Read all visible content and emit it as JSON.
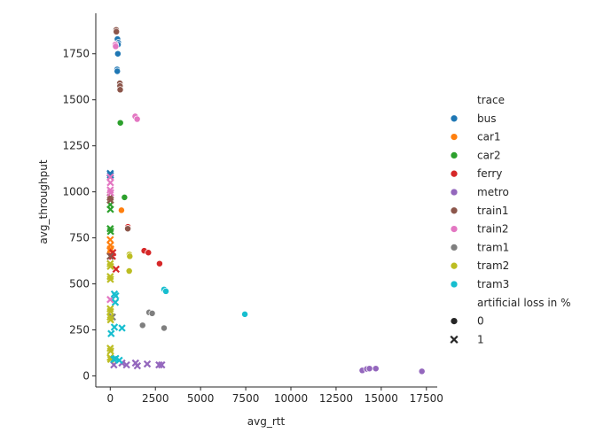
{
  "chart_data": {
    "type": "scatter",
    "title": "",
    "xlabel": "avg_rtt",
    "ylabel": "avg_throughput",
    "xlim": [
      -800,
      18100
    ],
    "ylim": [
      -60,
      1970
    ],
    "x_ticks": [
      0,
      2500,
      5000,
      7500,
      10000,
      12500,
      15000,
      17500
    ],
    "y_ticks": [
      0,
      250,
      500,
      750,
      1000,
      1250,
      1500,
      1750
    ],
    "grid": false,
    "legend": {
      "placement": "right",
      "hue_title": "trace",
      "style_title": "artificial loss in %",
      "style_entries": [
        {
          "label": "0",
          "marker": "circle"
        },
        {
          "label": "1",
          "marker": "x"
        }
      ]
    },
    "series": [
      {
        "name": "bus",
        "color": "#1f77b4",
        "points": [
          {
            "x": 400,
            "y": 1830,
            "loss": 0
          },
          {
            "x": 450,
            "y": 1810,
            "loss": 0
          },
          {
            "x": 430,
            "y": 1800,
            "loss": 0
          },
          {
            "x": 420,
            "y": 1750,
            "loss": 0
          },
          {
            "x": 380,
            "y": 1665,
            "loss": 0
          },
          {
            "x": 390,
            "y": 1655,
            "loss": 0
          },
          {
            "x": 0,
            "y": 1100,
            "loss": 1
          },
          {
            "x": 10,
            "y": 1090,
            "loss": 1
          }
        ]
      },
      {
        "name": "car1",
        "color": "#ff7f0e",
        "points": [
          {
            "x": 620,
            "y": 900,
            "loss": 0
          },
          {
            "x": 0,
            "y": 740,
            "loss": 1
          },
          {
            "x": 10,
            "y": 710,
            "loss": 1
          },
          {
            "x": 0,
            "y": 680,
            "loss": 1
          },
          {
            "x": 20,
            "y": 690,
            "loss": 1
          }
        ]
      },
      {
        "name": "car2",
        "color": "#2ca02c",
        "points": [
          {
            "x": 560,
            "y": 1375,
            "loss": 0
          },
          {
            "x": 790,
            "y": 970,
            "loss": 0
          },
          {
            "x": 0,
            "y": 930,
            "loss": 1
          },
          {
            "x": 10,
            "y": 905,
            "loss": 1
          },
          {
            "x": 0,
            "y": 800,
            "loss": 1
          },
          {
            "x": 20,
            "y": 785,
            "loss": 1
          }
        ]
      },
      {
        "name": "ferry",
        "color": "#d62728",
        "points": [
          {
            "x": 980,
            "y": 810,
            "loss": 0
          },
          {
            "x": 990,
            "y": 800,
            "loss": 0
          },
          {
            "x": 1880,
            "y": 680,
            "loss": 0
          },
          {
            "x": 2110,
            "y": 670,
            "loss": 0
          },
          {
            "x": 2730,
            "y": 610,
            "loss": 0
          },
          {
            "x": 120,
            "y": 650,
            "loss": 1
          },
          {
            "x": 140,
            "y": 670,
            "loss": 1
          },
          {
            "x": 320,
            "y": 580,
            "loss": 1
          }
        ]
      },
      {
        "name": "metro",
        "color": "#9467bd",
        "points": [
          {
            "x": 13950,
            "y": 30,
            "loss": 0
          },
          {
            "x": 14200,
            "y": 38,
            "loss": 0
          },
          {
            "x": 14350,
            "y": 40,
            "loss": 0
          },
          {
            "x": 14700,
            "y": 40,
            "loss": 0
          },
          {
            "x": 17250,
            "y": 25,
            "loss": 0
          },
          {
            "x": 200,
            "y": 60,
            "loss": 1
          },
          {
            "x": 650,
            "y": 70,
            "loss": 1
          },
          {
            "x": 900,
            "y": 60,
            "loss": 1
          },
          {
            "x": 1400,
            "y": 70,
            "loss": 1
          },
          {
            "x": 1500,
            "y": 55,
            "loss": 1
          },
          {
            "x": 2050,
            "y": 65,
            "loss": 1
          },
          {
            "x": 2700,
            "y": 60,
            "loss": 1
          },
          {
            "x": 2850,
            "y": 60,
            "loss": 1
          }
        ]
      },
      {
        "name": "train1",
        "color": "#8c564b",
        "points": [
          {
            "x": 330,
            "y": 1880,
            "loss": 0
          },
          {
            "x": 340,
            "y": 1870,
            "loss": 0
          },
          {
            "x": 530,
            "y": 1590,
            "loss": 0
          },
          {
            "x": 540,
            "y": 1575,
            "loss": 0
          },
          {
            "x": 550,
            "y": 1555,
            "loss": 0
          },
          {
            "x": 970,
            "y": 800,
            "loss": 0
          },
          {
            "x": 0,
            "y": 970,
            "loss": 1
          },
          {
            "x": 10,
            "y": 955,
            "loss": 1
          },
          {
            "x": 0,
            "y": 650,
            "loss": 1
          }
        ]
      },
      {
        "name": "train2",
        "color": "#e377c2",
        "points": [
          {
            "x": 280,
            "y": 1800,
            "loss": 0
          },
          {
            "x": 300,
            "y": 1790,
            "loss": 0
          },
          {
            "x": 1380,
            "y": 1410,
            "loss": 0
          },
          {
            "x": 1490,
            "y": 1395,
            "loss": 0
          },
          {
            "x": 0,
            "y": 1080,
            "loss": 1
          },
          {
            "x": 10,
            "y": 1050,
            "loss": 1
          },
          {
            "x": 0,
            "y": 1010,
            "loss": 1
          },
          {
            "x": 20,
            "y": 995,
            "loss": 1
          },
          {
            "x": 0,
            "y": 415,
            "loss": 1
          }
        ]
      },
      {
        "name": "tram1",
        "color": "#7f7f7f",
        "points": [
          {
            "x": 2150,
            "y": 345,
            "loss": 0
          },
          {
            "x": 2320,
            "y": 340,
            "loss": 0
          },
          {
            "x": 1790,
            "y": 275,
            "loss": 0
          },
          {
            "x": 2980,
            "y": 260,
            "loss": 0
          },
          {
            "x": 120,
            "y": 320,
            "loss": 1
          }
        ]
      },
      {
        "name": "tram2",
        "color": "#bcbd22",
        "points": [
          {
            "x": 1060,
            "y": 660,
            "loss": 0
          },
          {
            "x": 1080,
            "y": 650,
            "loss": 0
          },
          {
            "x": 1050,
            "y": 570,
            "loss": 0
          },
          {
            "x": 0,
            "y": 610,
            "loss": 1
          },
          {
            "x": 10,
            "y": 595,
            "loss": 1
          },
          {
            "x": 0,
            "y": 540,
            "loss": 1
          },
          {
            "x": 10,
            "y": 525,
            "loss": 1
          },
          {
            "x": 0,
            "y": 365,
            "loss": 1
          },
          {
            "x": 10,
            "y": 350,
            "loss": 1
          },
          {
            "x": 0,
            "y": 320,
            "loss": 1
          },
          {
            "x": 20,
            "y": 305,
            "loss": 1
          },
          {
            "x": 0,
            "y": 150,
            "loss": 1
          },
          {
            "x": 20,
            "y": 135,
            "loss": 1
          },
          {
            "x": 0,
            "y": 100,
            "loss": 1
          },
          {
            "x": 30,
            "y": 90,
            "loss": 1
          }
        ]
      },
      {
        "name": "tram3",
        "color": "#17becf",
        "points": [
          {
            "x": 2980,
            "y": 470,
            "loss": 0
          },
          {
            "x": 3080,
            "y": 460,
            "loss": 0
          },
          {
            "x": 7450,
            "y": 335,
            "loss": 0
          },
          {
            "x": 230,
            "y": 445,
            "loss": 1
          },
          {
            "x": 300,
            "y": 435,
            "loss": 1
          },
          {
            "x": 280,
            "y": 400,
            "loss": 1
          },
          {
            "x": 230,
            "y": 265,
            "loss": 1
          },
          {
            "x": 650,
            "y": 260,
            "loss": 1
          },
          {
            "x": 50,
            "y": 230,
            "loss": 1
          },
          {
            "x": 300,
            "y": 95,
            "loss": 1
          },
          {
            "x": 200,
            "y": 90,
            "loss": 1
          },
          {
            "x": 500,
            "y": 85,
            "loss": 1
          }
        ]
      }
    ]
  }
}
